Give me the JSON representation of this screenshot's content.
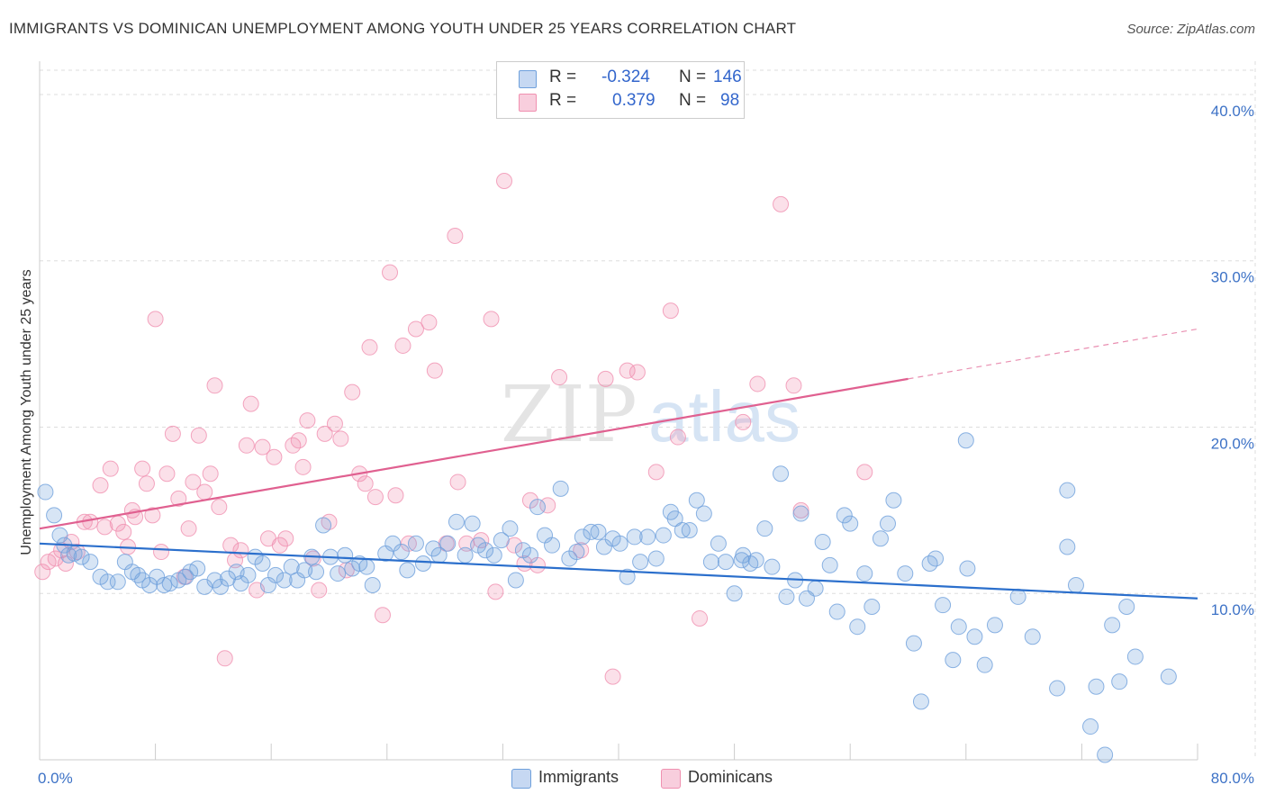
{
  "title": "IMMIGRANTS VS DOMINICAN UNEMPLOYMENT AMONG YOUTH UNDER 25 YEARS CORRELATION CHART",
  "source": "Source: ZipAtlas.com",
  "watermark": {
    "zip": "ZIP",
    "atlas": "atlas"
  },
  "colors": {
    "immigrants": "#6fa0dc",
    "immigrants_line": "#2b6fcc",
    "dominicans": "#f090b0",
    "dominicans_line": "#e06090",
    "grid": "#dddddd",
    "tick_text": "#3d72c6"
  },
  "legend": {
    "rows": [
      {
        "r_label": "R =",
        "r_value": "-0.324",
        "n_label": "N =",
        "n_value": "146"
      },
      {
        "r_label": "R =",
        "r_value": "0.379",
        "n_label": "N =",
        "n_value": "98"
      }
    ]
  },
  "bottom_legend": [
    {
      "label": "Immigrants"
    },
    {
      "label": "Dominicans"
    }
  ],
  "chart_data": {
    "type": "scatter",
    "title": "IMMIGRANTS VS DOMINICAN UNEMPLOYMENT AMONG YOUTH UNDER 25 YEARS CORRELATION CHART",
    "xlabel": "",
    "ylabel": "Unemployment Among Youth under 25 years",
    "xlim": [
      0,
      80
    ],
    "ylim": [
      0,
      42
    ],
    "x_tick_labels": [
      "0.0%",
      "80.0%"
    ],
    "y_ticks": [
      10,
      20,
      30,
      40
    ],
    "y_tick_labels": [
      "10.0%",
      "20.0%",
      "30.0%",
      "40.0%"
    ],
    "grid": true,
    "legend_position": "top-center",
    "series": [
      {
        "name": "Immigrants",
        "r": -0.324,
        "n": 146,
        "trend": {
          "x0": 0,
          "y0": 13.0,
          "x1": 80,
          "y1": 9.7
        },
        "points": [
          [
            0.4,
            16.1
          ],
          [
            1.0,
            14.7
          ],
          [
            1.4,
            13.5
          ],
          [
            1.7,
            12.9
          ],
          [
            2.0,
            12.3
          ],
          [
            2.4,
            12.4
          ],
          [
            2.9,
            12.2
          ],
          [
            3.5,
            11.9
          ],
          [
            4.2,
            11.0
          ],
          [
            4.7,
            10.7
          ],
          [
            5.4,
            10.7
          ],
          [
            5.9,
            11.9
          ],
          [
            6.4,
            11.3
          ],
          [
            6.8,
            11.1
          ],
          [
            7.1,
            10.8
          ],
          [
            7.6,
            10.5
          ],
          [
            8.1,
            11.0
          ],
          [
            8.6,
            10.5
          ],
          [
            9.0,
            10.6
          ],
          [
            9.6,
            10.8
          ],
          [
            10.1,
            11.0
          ],
          [
            10.4,
            11.3
          ],
          [
            10.9,
            11.5
          ],
          [
            11.4,
            10.4
          ],
          [
            12.1,
            10.8
          ],
          [
            12.5,
            10.4
          ],
          [
            13.0,
            10.9
          ],
          [
            13.6,
            11.3
          ],
          [
            13.9,
            10.6
          ],
          [
            14.4,
            11.1
          ],
          [
            14.9,
            12.2
          ],
          [
            15.4,
            11.8
          ],
          [
            15.8,
            10.5
          ],
          [
            16.3,
            11.1
          ],
          [
            16.9,
            10.8
          ],
          [
            17.4,
            11.6
          ],
          [
            17.8,
            10.8
          ],
          [
            18.3,
            11.4
          ],
          [
            18.8,
            12.2
          ],
          [
            19.1,
            11.3
          ],
          [
            19.6,
            14.1
          ],
          [
            20.1,
            12.2
          ],
          [
            20.6,
            11.2
          ],
          [
            21.1,
            12.3
          ],
          [
            21.6,
            11.5
          ],
          [
            22.1,
            11.8
          ],
          [
            22.6,
            11.6
          ],
          [
            23.0,
            10.5
          ],
          [
            23.9,
            12.4
          ],
          [
            24.4,
            13.0
          ],
          [
            25.0,
            12.5
          ],
          [
            25.4,
            11.4
          ],
          [
            26.0,
            13.0
          ],
          [
            26.5,
            11.8
          ],
          [
            27.2,
            12.7
          ],
          [
            27.6,
            12.3
          ],
          [
            28.2,
            13.0
          ],
          [
            28.8,
            14.3
          ],
          [
            29.4,
            12.3
          ],
          [
            29.9,
            14.2
          ],
          [
            30.3,
            12.9
          ],
          [
            30.8,
            12.6
          ],
          [
            31.4,
            12.3
          ],
          [
            31.9,
            13.2
          ],
          [
            32.5,
            13.9
          ],
          [
            32.9,
            10.8
          ],
          [
            33.4,
            12.6
          ],
          [
            33.9,
            12.3
          ],
          [
            34.4,
            15.2
          ],
          [
            34.9,
            13.5
          ],
          [
            35.4,
            12.9
          ],
          [
            36.0,
            16.3
          ],
          [
            36.6,
            12.1
          ],
          [
            37.1,
            12.5
          ],
          [
            37.5,
            13.4
          ],
          [
            38.1,
            13.7
          ],
          [
            38.6,
            13.7
          ],
          [
            39.0,
            12.8
          ],
          [
            39.6,
            13.3
          ],
          [
            40.1,
            13.0
          ],
          [
            40.6,
            11.0
          ],
          [
            41.1,
            13.4
          ],
          [
            41.5,
            11.9
          ],
          [
            42.0,
            13.4
          ],
          [
            42.6,
            12.1
          ],
          [
            43.1,
            13.5
          ],
          [
            43.6,
            14.9
          ],
          [
            43.9,
            14.5
          ],
          [
            44.4,
            13.8
          ],
          [
            44.9,
            13.8
          ],
          [
            45.4,
            15.6
          ],
          [
            45.9,
            14.8
          ],
          [
            46.4,
            11.9
          ],
          [
            46.9,
            13.0
          ],
          [
            47.4,
            11.9
          ],
          [
            48.0,
            10.0
          ],
          [
            48.6,
            12.3
          ],
          [
            49.1,
            11.8
          ],
          [
            49.5,
            12.0
          ],
          [
            50.1,
            13.9
          ],
          [
            50.6,
            11.6
          ],
          [
            51.2,
            17.2
          ],
          [
            51.6,
            9.8
          ],
          [
            52.2,
            10.8
          ],
          [
            52.6,
            14.8
          ],
          [
            53.0,
            9.7
          ],
          [
            53.6,
            10.3
          ],
          [
            54.1,
            13.1
          ],
          [
            54.6,
            11.7
          ],
          [
            55.1,
            8.9
          ],
          [
            55.6,
            14.7
          ],
          [
            56.0,
            14.2
          ],
          [
            56.5,
            8.0
          ],
          [
            57.0,
            11.2
          ],
          [
            57.5,
            9.2
          ],
          [
            58.1,
            13.3
          ],
          [
            58.6,
            14.2
          ],
          [
            59.0,
            15.6
          ],
          [
            59.8,
            11.2
          ],
          [
            60.4,
            7.0
          ],
          [
            60.9,
            3.5
          ],
          [
            61.5,
            11.8
          ],
          [
            61.9,
            12.1
          ],
          [
            62.4,
            9.3
          ],
          [
            63.1,
            6.0
          ],
          [
            63.5,
            8.0
          ],
          [
            64.1,
            11.5
          ],
          [
            64.6,
            7.4
          ],
          [
            65.3,
            5.7
          ],
          [
            66.0,
            8.1
          ],
          [
            67.6,
            9.8
          ],
          [
            68.6,
            7.4
          ],
          [
            70.3,
            4.3
          ],
          [
            71.0,
            12.8
          ],
          [
            71.0,
            16.2
          ],
          [
            71.6,
            10.5
          ],
          [
            72.6,
            2.0
          ],
          [
            73.0,
            4.4
          ],
          [
            73.6,
            0.3
          ],
          [
            74.1,
            8.1
          ],
          [
            74.6,
            4.7
          ],
          [
            75.1,
            9.2
          ],
          [
            75.7,
            6.2
          ],
          [
            78.0,
            5.0
          ],
          [
            64.0,
            19.2
          ],
          [
            48.5,
            12.0
          ]
        ]
      },
      {
        "name": "Dominicans",
        "r": 0.379,
        "n": 98,
        "trend": {
          "x0": 0,
          "y0": 13.9,
          "x1": 60,
          "y1": 22.9,
          "dashed_to_x": 80,
          "dashed_to_y": 25.9
        },
        "points": [
          [
            0.2,
            11.3
          ],
          [
            0.6,
            11.9
          ],
          [
            1.1,
            12.1
          ],
          [
            1.5,
            12.6
          ],
          [
            1.8,
            11.8
          ],
          [
            2.2,
            13.1
          ],
          [
            2.6,
            12.5
          ],
          [
            3.1,
            14.3
          ],
          [
            3.5,
            14.3
          ],
          [
            4.2,
            16.5
          ],
          [
            4.5,
            14.0
          ],
          [
            4.9,
            17.5
          ],
          [
            5.4,
            14.2
          ],
          [
            5.8,
            13.7
          ],
          [
            6.1,
            12.8
          ],
          [
            6.4,
            15.0
          ],
          [
            6.6,
            14.6
          ],
          [
            7.1,
            17.5
          ],
          [
            7.4,
            16.6
          ],
          [
            7.8,
            14.7
          ],
          [
            8.0,
            26.5
          ],
          [
            8.4,
            12.5
          ],
          [
            8.8,
            17.2
          ],
          [
            9.2,
            19.6
          ],
          [
            9.6,
            15.7
          ],
          [
            10.0,
            11.0
          ],
          [
            10.3,
            13.9
          ],
          [
            10.6,
            16.7
          ],
          [
            11.0,
            19.5
          ],
          [
            11.4,
            16.1
          ],
          [
            11.8,
            17.2
          ],
          [
            12.1,
            22.5
          ],
          [
            12.4,
            15.2
          ],
          [
            12.8,
            6.1
          ],
          [
            13.2,
            12.9
          ],
          [
            13.5,
            12.0
          ],
          [
            13.9,
            12.6
          ],
          [
            14.3,
            18.9
          ],
          [
            14.6,
            21.4
          ],
          [
            15.0,
            10.2
          ],
          [
            15.4,
            18.8
          ],
          [
            15.8,
            13.3
          ],
          [
            16.2,
            18.2
          ],
          [
            16.6,
            12.9
          ],
          [
            17.0,
            13.3
          ],
          [
            17.5,
            18.9
          ],
          [
            17.9,
            19.2
          ],
          [
            18.2,
            17.6
          ],
          [
            18.5,
            20.4
          ],
          [
            18.9,
            12.1
          ],
          [
            19.3,
            10.2
          ],
          [
            19.7,
            19.6
          ],
          [
            20.0,
            14.3
          ],
          [
            20.4,
            20.2
          ],
          [
            20.8,
            19.3
          ],
          [
            21.2,
            11.4
          ],
          [
            21.6,
            22.1
          ],
          [
            22.1,
            17.2
          ],
          [
            22.5,
            16.6
          ],
          [
            22.8,
            24.8
          ],
          [
            23.2,
            15.8
          ],
          [
            23.7,
            8.7
          ],
          [
            24.2,
            29.3
          ],
          [
            24.6,
            15.9
          ],
          [
            25.1,
            24.9
          ],
          [
            25.5,
            13.0
          ],
          [
            26.0,
            25.9
          ],
          [
            26.9,
            26.3
          ],
          [
            27.3,
            23.4
          ],
          [
            28.1,
            13.0
          ],
          [
            28.7,
            31.5
          ],
          [
            28.9,
            16.7
          ],
          [
            29.5,
            13.0
          ],
          [
            30.5,
            13.2
          ],
          [
            31.2,
            26.5
          ],
          [
            31.5,
            10.1
          ],
          [
            32.1,
            34.8
          ],
          [
            32.8,
            12.9
          ],
          [
            33.5,
            11.8
          ],
          [
            33.9,
            15.6
          ],
          [
            34.4,
            11.7
          ],
          [
            35.1,
            15.3
          ],
          [
            35.9,
            23.0
          ],
          [
            37.4,
            12.6
          ],
          [
            39.1,
            22.9
          ],
          [
            39.6,
            5.0
          ],
          [
            40.6,
            23.4
          ],
          [
            41.3,
            23.3
          ],
          [
            42.6,
            17.3
          ],
          [
            43.6,
            27.0
          ],
          [
            44.1,
            19.4
          ],
          [
            45.6,
            8.5
          ],
          [
            48.6,
            20.3
          ],
          [
            49.6,
            22.6
          ],
          [
            51.2,
            33.4
          ],
          [
            52.1,
            22.5
          ],
          [
            52.6,
            15.0
          ],
          [
            57.0,
            17.3
          ]
        ]
      }
    ]
  }
}
